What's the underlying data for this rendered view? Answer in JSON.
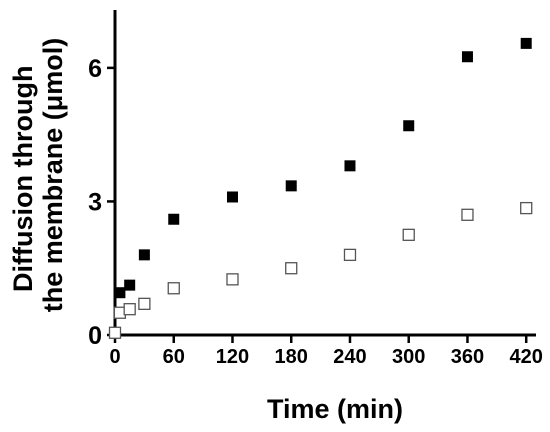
{
  "chart_data": {
    "type": "scatter",
    "xlabel": "Time (min)",
    "ylabel": [
      "Diffusion through",
      "the membrane (μmol)"
    ],
    "xlim": [
      0,
      430
    ],
    "ylim": [
      0,
      7.3
    ],
    "xticks": [
      0,
      60,
      120,
      180,
      240,
      300,
      360,
      420
    ],
    "yticks": [
      0,
      3,
      6
    ],
    "grid": false,
    "legend": "none",
    "series": [
      {
        "marker": "filled-square",
        "color": "#000000",
        "x": [
          5,
          15,
          30,
          60,
          120,
          180,
          240,
          300,
          360,
          420
        ],
        "y": [
          0.95,
          1.12,
          1.8,
          2.6,
          3.1,
          3.35,
          3.8,
          4.7,
          6.25,
          6.55
        ]
      },
      {
        "marker": "open-square",
        "color": "#000000",
        "x": [
          0,
          5,
          15,
          30,
          60,
          120,
          180,
          240,
          300,
          360,
          420
        ],
        "y": [
          0.05,
          0.5,
          0.58,
          0.7,
          1.05,
          1.25,
          1.5,
          1.8,
          2.25,
          2.7,
          2.85
        ]
      }
    ]
  }
}
